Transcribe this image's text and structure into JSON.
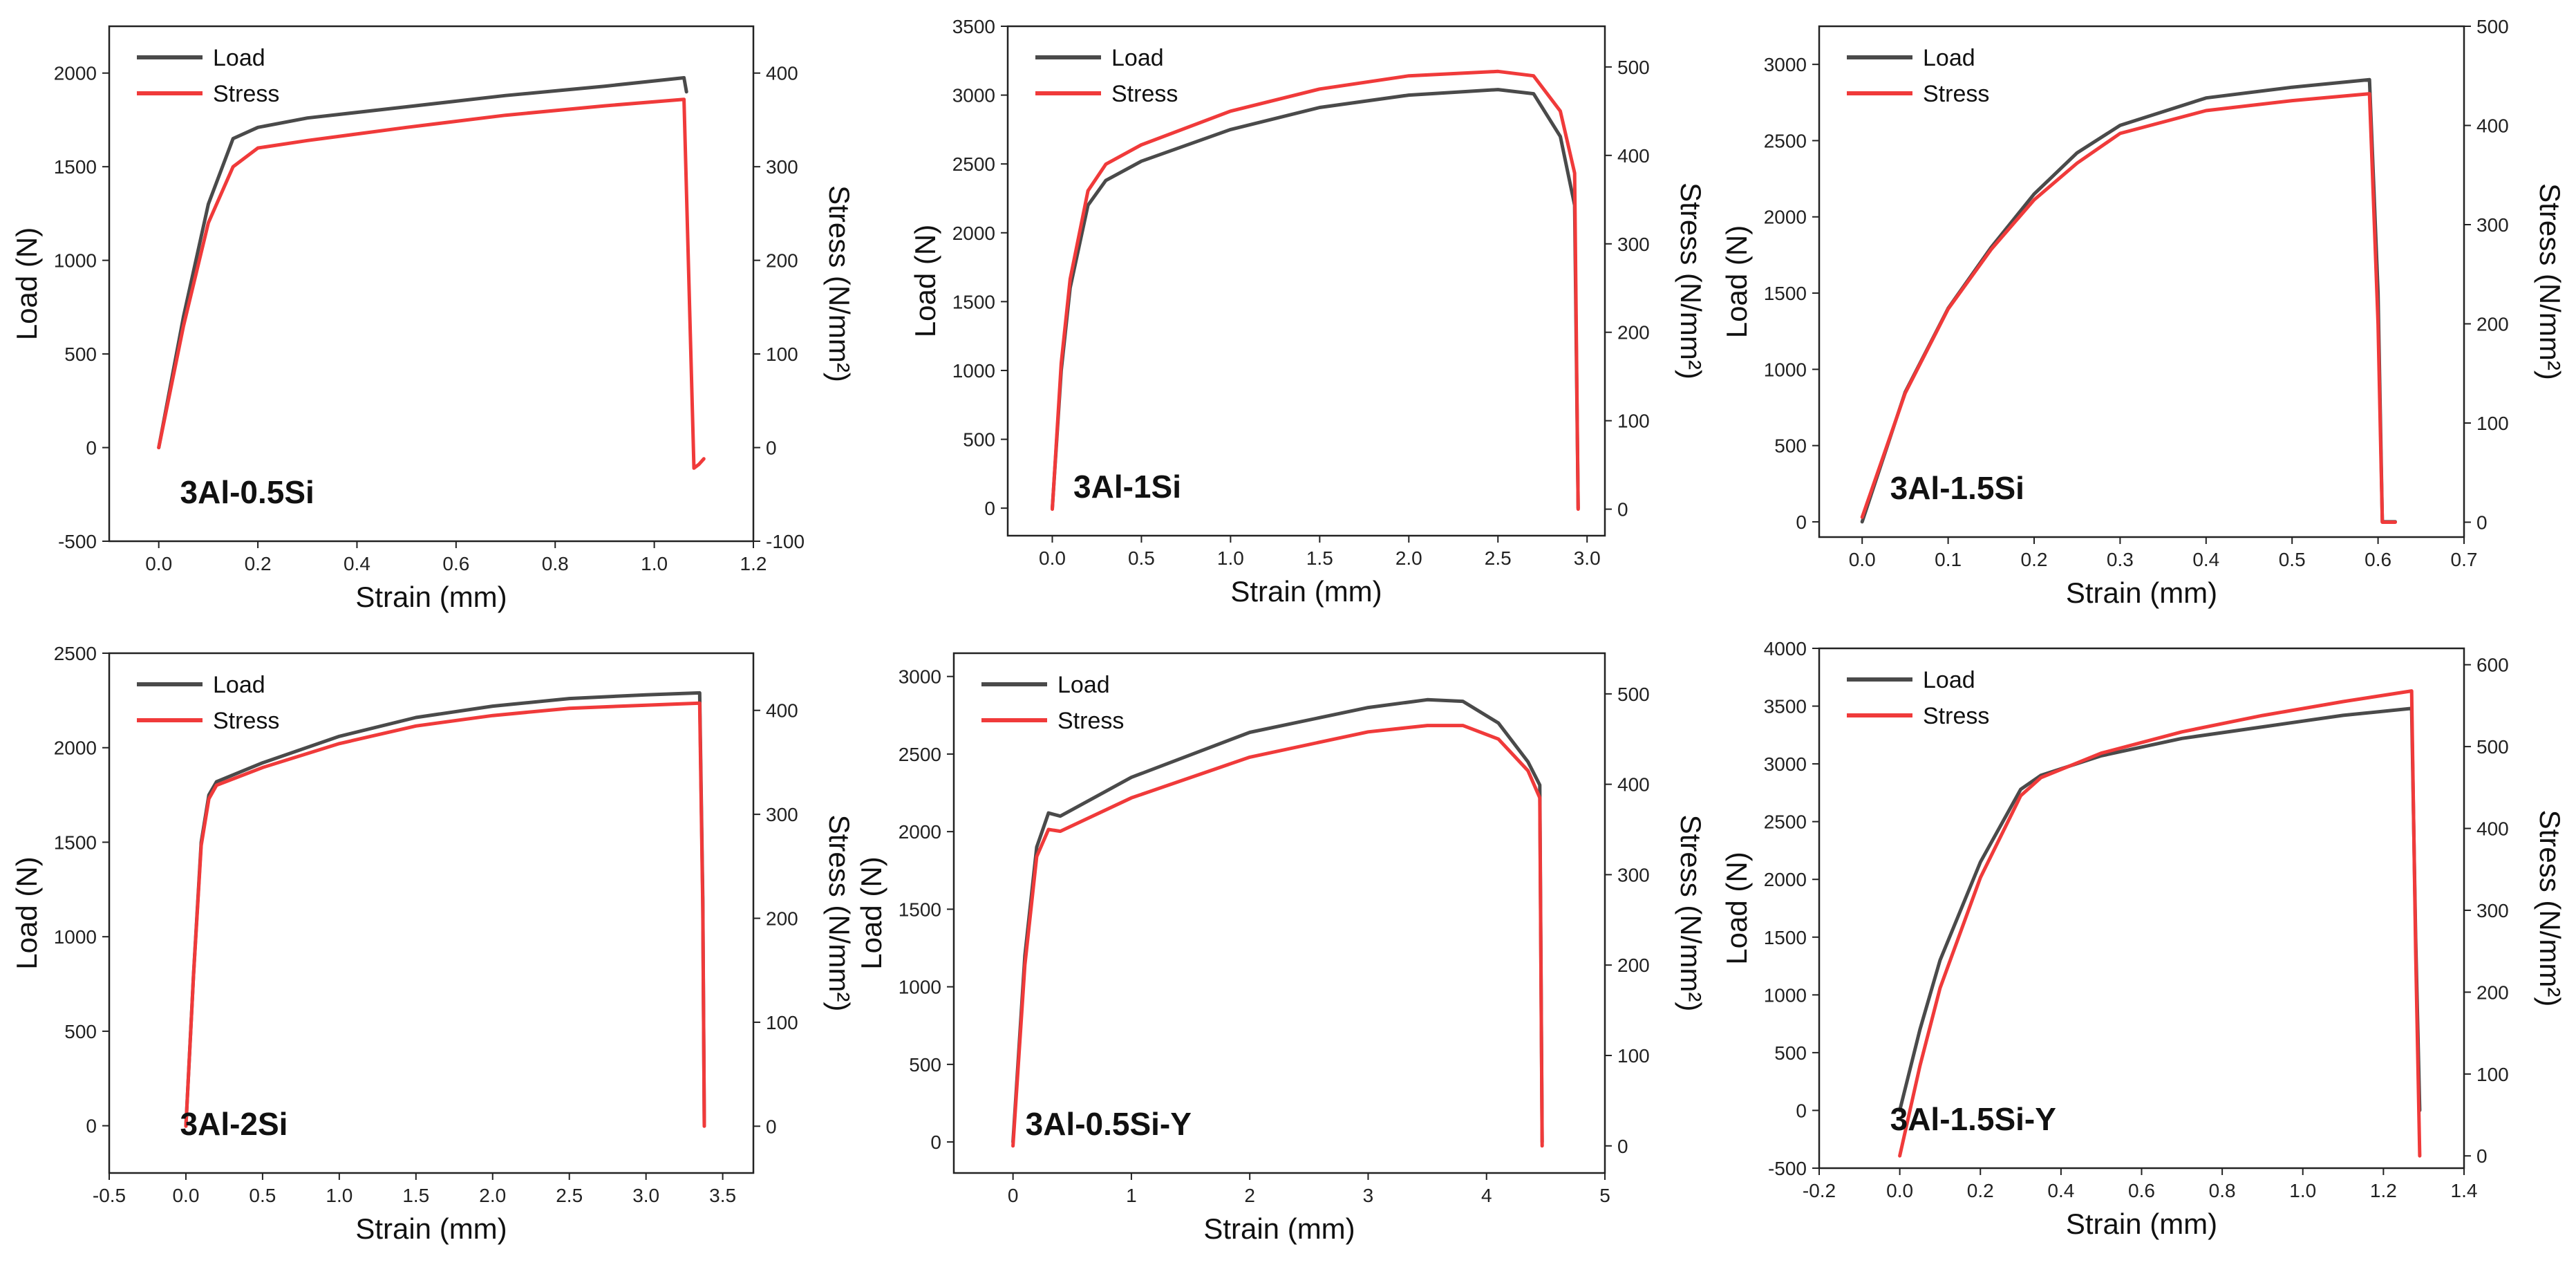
{
  "figure_title": "",
  "colors": {
    "load": "#4a4a4a",
    "stress": "#f03a3a",
    "axis": "#222222",
    "background": "#ffffff"
  },
  "chart_data": [
    {
      "type": "line",
      "id": "p1",
      "label": "3Al-0.5Si",
      "xlabel": "Strain (mm)",
      "ylabel": "Load (N)",
      "y2label": "Stress (N/mm²)",
      "xlim": [
        -0.1,
        1.2
      ],
      "ylim": [
        -500,
        2250
      ],
      "y2lim": [
        -100,
        450
      ],
      "xticks": [
        0.0,
        0.2,
        0.4,
        0.6,
        0.8,
        1.0,
        1.2
      ],
      "xtick_labels": [
        "0.0",
        "0.2",
        "0.4",
        "0.6",
        "0.8",
        "1.0",
        "1.2"
      ],
      "yticks": [
        -500,
        0,
        500,
        1000,
        1500,
        2000
      ],
      "ytick_labels": [
        "-500",
        "0",
        "500",
        "1000",
        "1500",
        "2000"
      ],
      "y2ticks": [
        -100,
        0,
        100,
        200,
        300,
        400
      ],
      "y2tick_labels": [
        "-100",
        "0",
        "100",
        "200",
        "300",
        "400"
      ],
      "legend": [
        "Load",
        "Stress"
      ],
      "series": [
        {
          "name": "Load",
          "axis": "left",
          "x": [
            0.0,
            0.05,
            0.1,
            0.15,
            0.2,
            0.3,
            0.5,
            0.7,
            0.9,
            1.06,
            1.065
          ],
          "y": [
            0,
            700,
            1300,
            1650,
            1710,
            1760,
            1820,
            1880,
            1930,
            1975,
            1900
          ]
        },
        {
          "name": "Stress",
          "axis": "right",
          "x": [
            0.0,
            0.05,
            0.1,
            0.15,
            0.2,
            0.3,
            0.5,
            0.7,
            0.9,
            1.06,
            1.08,
            1.09,
            1.1
          ],
          "y": [
            0,
            130,
            240,
            300,
            320,
            328,
            342,
            355,
            365,
            372,
            -22,
            -18,
            -12
          ]
        }
      ]
    },
    {
      "type": "line",
      "id": "p2",
      "label": "3Al-1Si",
      "xlabel": "Strain (mm)",
      "ylabel": "Load (N)",
      "y2label": "Stress (N/mm²)",
      "xlim": [
        -0.25,
        3.1
      ],
      "ylim": [
        -200,
        3500
      ],
      "y2lim": [
        -30,
        546
      ],
      "xticks": [
        0.0,
        0.5,
        1.0,
        1.5,
        2.0,
        2.5,
        3.0
      ],
      "xtick_labels": [
        "0.0",
        "0.5",
        "1.0",
        "1.5",
        "2.0",
        "2.5",
        "3.0"
      ],
      "yticks": [
        0,
        500,
        1000,
        1500,
        2000,
        2500,
        3000,
        3500
      ],
      "ytick_labels": [
        "0",
        "500",
        "1000",
        "1500",
        "2000",
        "2500",
        "3000",
        "3500"
      ],
      "y2ticks": [
        0,
        100,
        200,
        300,
        400,
        500
      ],
      "y2tick_labels": [
        "0",
        "100",
        "200",
        "300",
        "400",
        "500"
      ],
      "legend": [
        "Load",
        "Stress"
      ],
      "series": [
        {
          "name": "Load",
          "axis": "left",
          "x": [
            0.0,
            0.05,
            0.1,
            0.2,
            0.3,
            0.5,
            1.0,
            1.5,
            2.0,
            2.5,
            2.7,
            2.85,
            2.93,
            2.95
          ],
          "y": [
            0,
            1000,
            1600,
            2200,
            2380,
            2520,
            2750,
            2910,
            3000,
            3040,
            3010,
            2700,
            2200,
            0
          ]
        },
        {
          "name": "Stress",
          "axis": "right",
          "x": [
            0.0,
            0.05,
            0.1,
            0.2,
            0.3,
            0.5,
            1.0,
            1.5,
            2.0,
            2.5,
            2.7,
            2.85,
            2.93,
            2.95
          ],
          "y": [
            0,
            165,
            260,
            360,
            390,
            412,
            450,
            475,
            490,
            495,
            490,
            450,
            380,
            0
          ]
        }
      ]
    },
    {
      "type": "line",
      "id": "p3",
      "label": "3Al-1.5Si",
      "xlabel": "Strain (mm)",
      "ylabel": "Load (N)",
      "y2label": "Stress (N/mm²)",
      "xlim": [
        -0.05,
        0.7
      ],
      "ylim": [
        -100,
        3250
      ],
      "y2lim": [
        -15,
        500
      ],
      "xticks": [
        0.0,
        0.1,
        0.2,
        0.3,
        0.4,
        0.5,
        0.6,
        0.7
      ],
      "xtick_labels": [
        "0.0",
        "0.1",
        "0.2",
        "0.3",
        "0.4",
        "0.5",
        "0.6",
        "0.7"
      ],
      "yticks": [
        0,
        500,
        1000,
        1500,
        2000,
        2500,
        3000
      ],
      "ytick_labels": [
        "0",
        "500",
        "1000",
        "1500",
        "2000",
        "2500",
        "3000"
      ],
      "y2ticks": [
        0,
        100,
        200,
        300,
        400,
        500
      ],
      "y2tick_labels": [
        "0",
        "100",
        "200",
        "300",
        "400",
        "500"
      ],
      "legend": [
        "Load",
        "Stress"
      ],
      "series": [
        {
          "name": "Load",
          "axis": "left",
          "x": [
            0.0,
            0.05,
            0.1,
            0.15,
            0.2,
            0.25,
            0.3,
            0.4,
            0.5,
            0.59,
            0.6,
            0.605,
            0.62
          ],
          "y": [
            0,
            850,
            1400,
            1800,
            2150,
            2420,
            2600,
            2780,
            2850,
            2900,
            1500,
            0,
            0
          ]
        },
        {
          "name": "Stress",
          "axis": "right",
          "x": [
            0.0,
            0.05,
            0.1,
            0.15,
            0.2,
            0.25,
            0.3,
            0.4,
            0.5,
            0.59,
            0.6,
            0.605,
            0.62
          ],
          "y": [
            5,
            130,
            215,
            275,
            325,
            362,
            392,
            415,
            425,
            432,
            200,
            0,
            0
          ]
        }
      ]
    },
    {
      "type": "line",
      "id": "p4",
      "label": "3Al-2Si",
      "xlabel": "Strain (mm)",
      "ylabel": "Load (N)",
      "y2label": "Stress (N/mm²)",
      "xlim": [
        -0.5,
        3.7
      ],
      "ylim": [
        -250,
        2500
      ],
      "y2lim": [
        -45,
        455
      ],
      "xticks": [
        -0.5,
        0.0,
        0.5,
        1.0,
        1.5,
        2.0,
        2.5,
        3.0,
        3.5
      ],
      "xtick_labels": [
        "-0.5",
        "0.0",
        "0.5",
        "1.0",
        "1.5",
        "2.0",
        "2.5",
        "3.0",
        "3.5"
      ],
      "yticks": [
        0,
        500,
        1000,
        1500,
        2000,
        2500
      ],
      "ytick_labels": [
        "0",
        "500",
        "1000",
        "1500",
        "2000",
        "2500"
      ],
      "y2ticks": [
        0,
        100,
        200,
        300,
        400
      ],
      "y2tick_labels": [
        "0",
        "100",
        "200",
        "300",
        "400"
      ],
      "legend": [
        "Load",
        "Stress"
      ],
      "series": [
        {
          "name": "Load",
          "axis": "left",
          "x": [
            0.0,
            0.05,
            0.1,
            0.15,
            0.2,
            0.5,
            1.0,
            1.5,
            2.0,
            2.5,
            3.0,
            3.35,
            3.37,
            3.38
          ],
          "y": [
            0,
            800,
            1500,
            1750,
            1820,
            1920,
            2060,
            2160,
            2220,
            2260,
            2280,
            2290,
            1200,
            0
          ]
        },
        {
          "name": "Stress",
          "axis": "right",
          "x": [
            0.0,
            0.05,
            0.1,
            0.15,
            0.2,
            0.5,
            1.0,
            1.5,
            2.0,
            2.5,
            3.0,
            3.35,
            3.37,
            3.38
          ],
          "y": [
            0,
            145,
            270,
            315,
            328,
            345,
            368,
            385,
            395,
            402,
            405,
            407,
            210,
            0
          ]
        }
      ]
    },
    {
      "type": "line",
      "id": "p5",
      "label": "3Al-0.5Si-Y",
      "xlabel": "Strain (mm)",
      "ylabel": "Load (N)",
      "y2label": "Stress (N/mm²)",
      "xlim": [
        -0.5,
        5.0
      ],
      "ylim": [
        -200,
        3150
      ],
      "y2lim": [
        -30,
        545
      ],
      "xticks": [
        0,
        1,
        2,
        3,
        4,
        5
      ],
      "xtick_labels": [
        "0",
        "1",
        "2",
        "3",
        "4",
        "5"
      ],
      "yticks": [
        0,
        500,
        1000,
        1500,
        2000,
        2500,
        3000
      ],
      "ytick_labels": [
        "0",
        "500",
        "1000",
        "1500",
        "2000",
        "2500",
        "3000"
      ],
      "y2ticks": [
        0,
        100,
        200,
        300,
        400,
        500
      ],
      "y2tick_labels": [
        "0",
        "100",
        "200",
        "300",
        "400",
        "500"
      ],
      "legend": [
        "Load",
        "Stress"
      ],
      "series": [
        {
          "name": "Load",
          "axis": "left",
          "x": [
            0.0,
            0.1,
            0.2,
            0.3,
            0.4,
            1.0,
            2.0,
            3.0,
            3.5,
            3.8,
            4.1,
            4.35,
            4.45,
            4.47
          ],
          "y": [
            0,
            1200,
            1900,
            2120,
            2100,
            2350,
            2640,
            2800,
            2850,
            2840,
            2700,
            2450,
            2300,
            0
          ]
        },
        {
          "name": "Stress",
          "axis": "right",
          "x": [
            0.0,
            0.1,
            0.2,
            0.3,
            0.4,
            1.0,
            2.0,
            3.0,
            3.5,
            3.8,
            4.1,
            4.35,
            4.45,
            4.47
          ],
          "y": [
            0,
            200,
            320,
            350,
            348,
            385,
            430,
            458,
            465,
            465,
            450,
            415,
            385,
            0
          ]
        }
      ]
    },
    {
      "type": "line",
      "id": "p6",
      "label": "3Al-1.5Si-Y",
      "xlabel": "Strain (mm)",
      "ylabel": "Load (N)",
      "y2label": "Stress (N/mm²)",
      "xlim": [
        -0.2,
        1.4
      ],
      "ylim": [
        -500,
        4000
      ],
      "y2lim": [
        -15,
        620
      ],
      "xticks": [
        -0.2,
        0.0,
        0.2,
        0.4,
        0.6,
        0.8,
        1.0,
        1.2,
        1.4
      ],
      "xtick_labels": [
        "-0.2",
        "0.0",
        "0.2",
        "0.4",
        "0.6",
        "0.8",
        "1.0",
        "1.2",
        "1.4"
      ],
      "yticks": [
        -500,
        0,
        500,
        1000,
        1500,
        2000,
        2500,
        3000,
        3500,
        4000
      ],
      "ytick_labels": [
        "-500",
        "0",
        "500",
        "1000",
        "1500",
        "2000",
        "2500",
        "3000",
        "3500",
        "4000"
      ],
      "y2ticks": [
        0,
        100,
        200,
        300,
        400,
        500,
        600
      ],
      "y2tick_labels": [
        "0",
        "100",
        "200",
        "300",
        "400",
        "500",
        "600"
      ],
      "legend": [
        "Load",
        "Stress"
      ],
      "series": [
        {
          "name": "Load",
          "axis": "left",
          "x": [
            0.0,
            0.05,
            0.1,
            0.2,
            0.3,
            0.35,
            0.5,
            0.7,
            0.9,
            1.1,
            1.27,
            1.28,
            1.29
          ],
          "y": [
            0,
            700,
            1300,
            2150,
            2780,
            2900,
            3070,
            3220,
            3320,
            3420,
            3480,
            1500,
            0
          ]
        },
        {
          "name": "Stress",
          "axis": "right",
          "x": [
            0.0,
            0.05,
            0.1,
            0.2,
            0.3,
            0.35,
            0.5,
            0.7,
            0.9,
            1.1,
            1.27,
            1.28,
            1.29
          ],
          "y": [
            0,
            110,
            205,
            340,
            440,
            462,
            492,
            518,
            538,
            555,
            568,
            250,
            0
          ]
        }
      ]
    }
  ]
}
